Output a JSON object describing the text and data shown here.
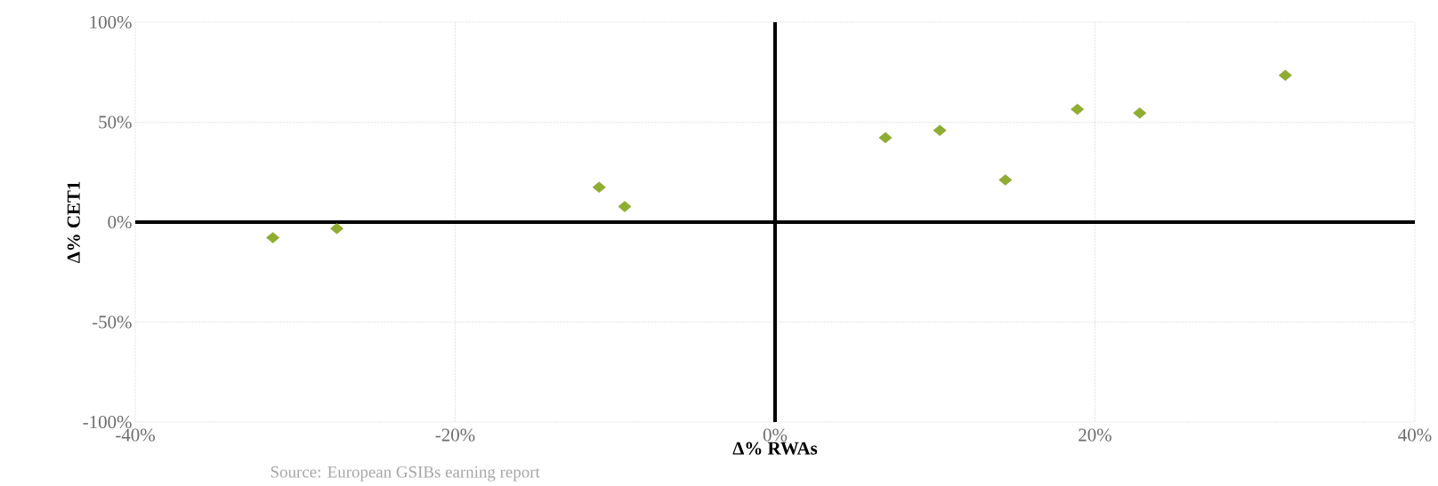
{
  "chart_data": {
    "type": "scatter",
    "xlabel": "Δ% RWAs",
    "ylabel": "Δ% CET1",
    "x": [
      -31.4,
      -27.4,
      -11.0,
      -9.4,
      6.9,
      10.3,
      14.4,
      18.9,
      22.8,
      31.9
    ],
    "values": [
      -7.8,
      -3.2,
      17.4,
      7.8,
      42.2,
      45.9,
      21.1,
      56.4,
      54.6,
      73.4
    ],
    "color": "#8fae2f",
    "marker": "diamond",
    "grid": true,
    "xlim": [
      -40,
      40
    ],
    "ylim": [
      -100,
      100
    ],
    "xticks": [
      {
        "value": -40,
        "label": "-40%"
      },
      {
        "value": -20,
        "label": "-20%"
      },
      {
        "value": 0,
        "label": "0%"
      },
      {
        "value": 20,
        "label": "20%"
      },
      {
        "value": 40,
        "label": "40%"
      }
    ],
    "yticks": [
      {
        "value": -100,
        "label": "-100%"
      },
      {
        "value": -50,
        "label": "-50%"
      },
      {
        "value": 0,
        "label": "0%"
      },
      {
        "value": 50,
        "label": "50%"
      },
      {
        "value": 100,
        "label": "100%"
      }
    ],
    "annotations": [
      "Source: European GSIBs earning report"
    ]
  }
}
